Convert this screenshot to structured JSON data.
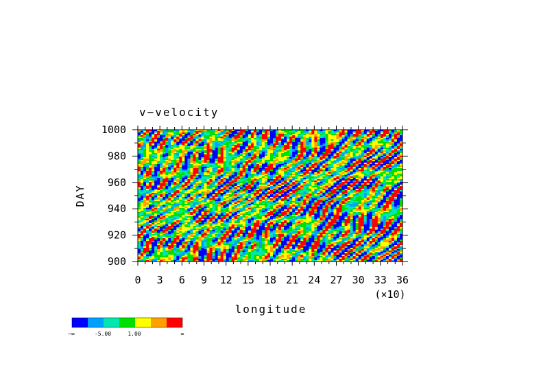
{
  "chart_data": {
    "type": "heatmap",
    "title": "v−velocity",
    "xlabel": "longitude",
    "ylabel": "DAY",
    "x_multiplier_label": "(×10)",
    "xlim": [
      0,
      36
    ],
    "ylim": [
      900,
      1000
    ],
    "x_ticks": [
      "0",
      "3",
      "6",
      "9",
      "12",
      "15",
      "18",
      "21",
      "24",
      "27",
      "30",
      "33",
      "36"
    ],
    "y_ticks": [
      "900",
      "920",
      "940",
      "960",
      "980",
      "1000"
    ],
    "colorbar": {
      "colors": [
        "#0000ff",
        "#00a0ff",
        "#00e8b0",
        "#00e000",
        "#ffff00",
        "#ffa000",
        "#ff0000"
      ],
      "labels": [
        "−∞",
        "-5.00",
        "1.00",
        "∞"
      ]
    }
  }
}
